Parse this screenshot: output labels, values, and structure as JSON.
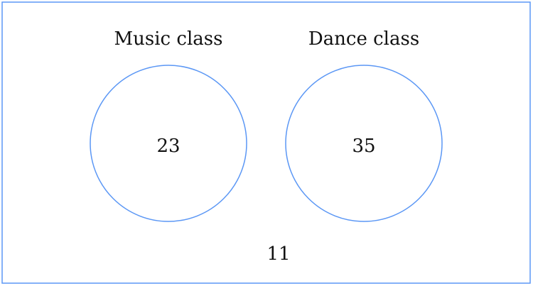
{
  "diagram": {
    "type": "venn",
    "stroke_color": "#5b97f5",
    "sets": [
      {
        "label": "Music class",
        "value": "23"
      },
      {
        "label": "Dance class",
        "value": "35"
      }
    ],
    "outside_value": "11"
  }
}
